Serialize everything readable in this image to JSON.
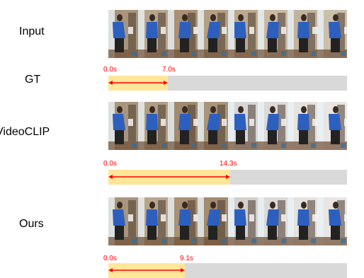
{
  "rows": {
    "input": {
      "label": "Input"
    },
    "gt": {
      "label": "GT",
      "start": "0.0s",
      "end": "7.0s",
      "fraction": 0.25
    },
    "videoclip": {
      "label": "VideoCLIP",
      "start": "0.0s",
      "end": "14.3s",
      "fraction": 0.51
    },
    "ours": {
      "label": "Ours",
      "start": "0.0s",
      "end": "9.1s",
      "fraction": 0.32
    }
  },
  "colors": {
    "segment_fill": "#ffe699",
    "track": "#d9d9d9",
    "arrow": "#ff0000",
    "person_top": "#2d5fbf",
    "person_pants": "#222222",
    "scene_bg": "#b9a792"
  },
  "frames_per_strip": 8
}
